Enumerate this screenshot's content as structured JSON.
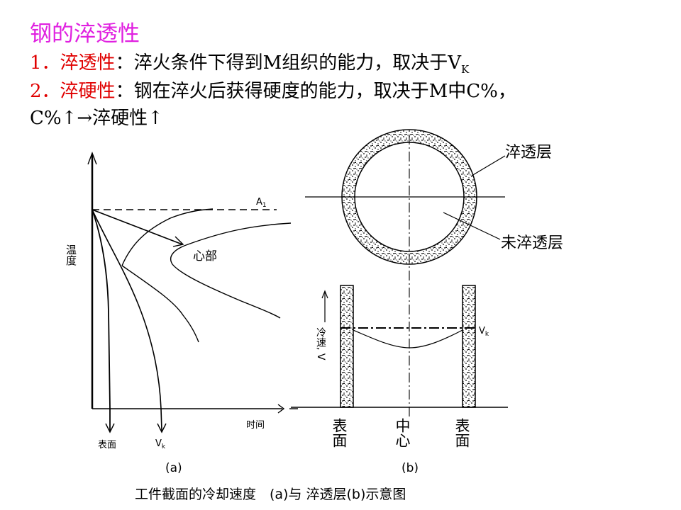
{
  "title": "钢的淬透性",
  "points": [
    {
      "num": "1．",
      "term": "淬透性",
      "colon": "：",
      "text": "淬火条件下得到M组织的能力，取决于V",
      "sub": "K"
    },
    {
      "num": "2．",
      "term": "淬硬性",
      "colon": "：",
      "text": "钢在淬火后获得硬度的能力，取决于M中C%，"
    }
  ],
  "line3": "C%↑→淬硬性↑",
  "diagram_a": {
    "y_label": "温度",
    "x_label": "时间",
    "a1_label": "A",
    "a1_sub": "1",
    "core_label": "心部",
    "surface_label": "表面",
    "vk_label": "V",
    "vk_sub": "k",
    "caption": "(a)"
  },
  "circle": {
    "hardened_layer_label": "淬透层",
    "unhardened_layer_label": "未淬透层"
  },
  "diagram_b": {
    "y_label": "冷速, V",
    "vk_label": "V",
    "vk_sub": "k",
    "left_label": "表面",
    "center_label": "中心",
    "right_label": "表面",
    "caption": "(b)"
  },
  "figure_caption": "工件截面的冷却速度　(a)与 淬透层(b)示意图",
  "colors": {
    "title": "#e020e0",
    "term": "#e00000",
    "text": "#000000"
  }
}
